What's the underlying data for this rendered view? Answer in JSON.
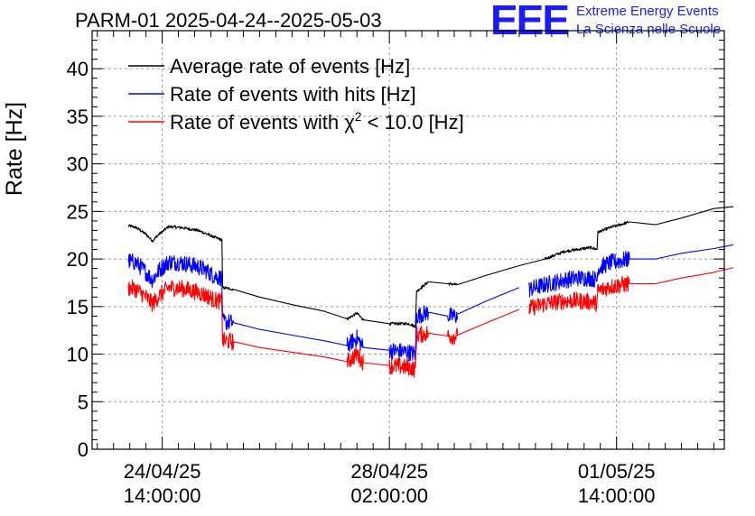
{
  "header": {
    "title": "PARM-01 2025-04-24--2025-05-03",
    "logo_text": "EEE",
    "logo_line1": "Extreme Energy Events",
    "logo_line2": "La Scienza nelle Scuole"
  },
  "colors": {
    "black": "#000000",
    "blue": "#0000ff",
    "red": "#ff0000",
    "logo": "#1a1aff",
    "grid": "#9a9a9a"
  },
  "chart_data": {
    "type": "line",
    "ylabel": "Rate [Hz]",
    "ylim": [
      0,
      44
    ],
    "xlim_days": [
      -1.08,
      8.66
    ],
    "yticks": [
      0,
      5,
      10,
      15,
      20,
      25,
      30,
      35,
      40
    ],
    "xticks": [
      {
        "day": 0,
        "line1": "24/04/25",
        "line2": "14:00:00"
      },
      {
        "day": 3.5,
        "line1": "28/04/25",
        "line2": "02:00:00"
      },
      {
        "day": 7.0,
        "line1": "01/05/25",
        "line2": "14:00:00"
      }
    ],
    "legend": {
      "placement": "top-left",
      "entries": [
        {
          "series": "average",
          "label": "Average rate of events [Hz]"
        },
        {
          "series": "hits",
          "label": "Rate of events with hits [Hz]"
        },
        {
          "series": "chi2",
          "label_pre": "Rate of events with χ",
          "label_sup": "2",
          "label_post": " < 10.0 [Hz]"
        }
      ]
    },
    "series": [
      {
        "name": "Average rate of events [Hz]",
        "key": "average",
        "color": "#000000",
        "noise": 0.3,
        "segments": [
          [
            [
              -0.52,
              23.5
            ],
            [
              -0.4,
              23.3
            ],
            [
              -0.25,
              22.6
            ],
            [
              -0.15,
              21.9
            ],
            [
              -0.05,
              22.6
            ],
            [
              0.1,
              23.4
            ],
            [
              0.3,
              23.3
            ],
            [
              0.55,
              23.0
            ],
            [
              0.7,
              22.6
            ],
            [
              0.8,
              22.3
            ],
            [
              0.92,
              22.0
            ],
            [
              0.93,
              17.0
            ],
            [
              1.1,
              16.8
            ],
            [
              1.5,
              16.0
            ],
            [
              2.0,
              15.2
            ],
            [
              2.5,
              14.5
            ],
            [
              2.85,
              13.7
            ],
            [
              3.0,
              14.3
            ],
            [
              3.1,
              13.6
            ],
            [
              3.5,
              13.2
            ],
            [
              3.8,
              13.2
            ],
            [
              3.9,
              12.9
            ],
            [
              3.92,
              16.6
            ],
            [
              4.1,
              17.6
            ],
            [
              4.4,
              17.4
            ],
            [
              4.55,
              17.3
            ]
          ],
          [
            [
              4.55,
              17.3
            ],
            [
              5.0,
              18.3
            ],
            [
              5.5,
              19.3
            ],
            [
              5.9,
              20.0
            ],
            [
              6.2,
              20.8
            ],
            [
              6.4,
              21.0
            ],
            [
              6.6,
              21.2
            ],
            [
              6.7,
              21.0
            ],
            [
              6.71,
              22.8
            ],
            [
              6.9,
              23.3
            ],
            [
              7.2,
              23.9
            ],
            [
              7.6,
              23.6
            ],
            [
              8.0,
              24.3
            ],
            [
              8.5,
              25.3
            ],
            [
              8.8,
              25.5
            ]
          ]
        ]
      },
      {
        "name": "Rate of events with hits [Hz]",
        "key": "hits",
        "color": "#0000ff",
        "noise": 1.8,
        "segments": [
          [
            [
              -0.52,
              19.8
            ],
            [
              -0.4,
              19.6
            ],
            [
              -0.25,
              18.6
            ],
            [
              -0.15,
              17.8
            ],
            [
              -0.05,
              18.8
            ],
            [
              0.1,
              19.7
            ],
            [
              0.3,
              19.6
            ],
            [
              0.55,
              19.2
            ],
            [
              0.7,
              18.7
            ],
            [
              0.8,
              18.2
            ],
            [
              0.92,
              18.0
            ],
            [
              0.93,
              13.4
            ],
            [
              1.1,
              13.3
            ],
            [
              1.5,
              12.6
            ],
            [
              2.0,
              12.0
            ],
            [
              2.5,
              11.4
            ],
            [
              2.85,
              10.9
            ],
            [
              3.0,
              11.7
            ],
            [
              3.1,
              10.7
            ],
            [
              3.5,
              10.4
            ],
            [
              3.8,
              10.2
            ],
            [
              3.9,
              10.0
            ],
            [
              3.92,
              14.0
            ],
            [
              4.1,
              14.4
            ],
            [
              4.4,
              14.0
            ],
            [
              4.55,
              14.0
            ]
          ],
          [
            [
              4.55,
              14.2
            ],
            [
              5.0,
              15.6
            ],
            [
              5.5,
              17.0
            ]
          ],
          [
            [
              5.65,
              16.8
            ],
            [
              5.9,
              17.3
            ],
            [
              6.2,
              17.8
            ],
            [
              6.4,
              18.0
            ],
            [
              6.6,
              18.0
            ],
            [
              6.7,
              17.8
            ],
            [
              6.71,
              19.0
            ],
            [
              6.9,
              19.6
            ],
            [
              7.2,
              20.0
            ],
            [
              7.6,
              20.0
            ],
            [
              8.0,
              20.6
            ],
            [
              8.5,
              21.1
            ],
            [
              8.8,
              21.5
            ]
          ]
        ]
      },
      {
        "name": "Rate of events with χ2 < 10.0 [Hz]",
        "key": "chi2",
        "color": "#ff0000",
        "noise": 1.8,
        "segments": [
          [
            [
              -0.52,
              17.0
            ],
            [
              -0.4,
              16.8
            ],
            [
              -0.25,
              16.0
            ],
            [
              -0.15,
              15.3
            ],
            [
              -0.05,
              16.1
            ],
            [
              0.1,
              17.0
            ],
            [
              0.3,
              16.9
            ],
            [
              0.55,
              16.5
            ],
            [
              0.7,
              16.1
            ],
            [
              0.8,
              15.7
            ],
            [
              0.92,
              15.5
            ],
            [
              0.93,
              11.4
            ],
            [
              1.1,
              11.3
            ],
            [
              1.5,
              10.7
            ],
            [
              2.0,
              10.2
            ],
            [
              2.5,
              9.7
            ],
            [
              2.85,
              9.2
            ],
            [
              3.0,
              10.0
            ],
            [
              3.1,
              9.1
            ],
            [
              3.5,
              8.8
            ],
            [
              3.8,
              8.6
            ],
            [
              3.9,
              8.4
            ],
            [
              3.92,
              12.0
            ],
            [
              4.1,
              12.2
            ],
            [
              4.4,
              11.9
            ],
            [
              4.55,
              11.9
            ]
          ],
          [
            [
              4.55,
              12.0
            ],
            [
              5.0,
              13.3
            ],
            [
              5.5,
              14.7
            ]
          ],
          [
            [
              5.65,
              14.8
            ],
            [
              5.9,
              15.3
            ],
            [
              6.2,
              15.6
            ],
            [
              6.4,
              15.6
            ],
            [
              6.6,
              15.5
            ],
            [
              6.7,
              15.3
            ],
            [
              6.71,
              16.6
            ],
            [
              6.9,
              17.1
            ],
            [
              7.2,
              17.4
            ],
            [
              7.6,
              17.4
            ],
            [
              8.0,
              18.0
            ],
            [
              8.5,
              18.6
            ],
            [
              8.8,
              19.1
            ]
          ]
        ]
      }
    ]
  }
}
